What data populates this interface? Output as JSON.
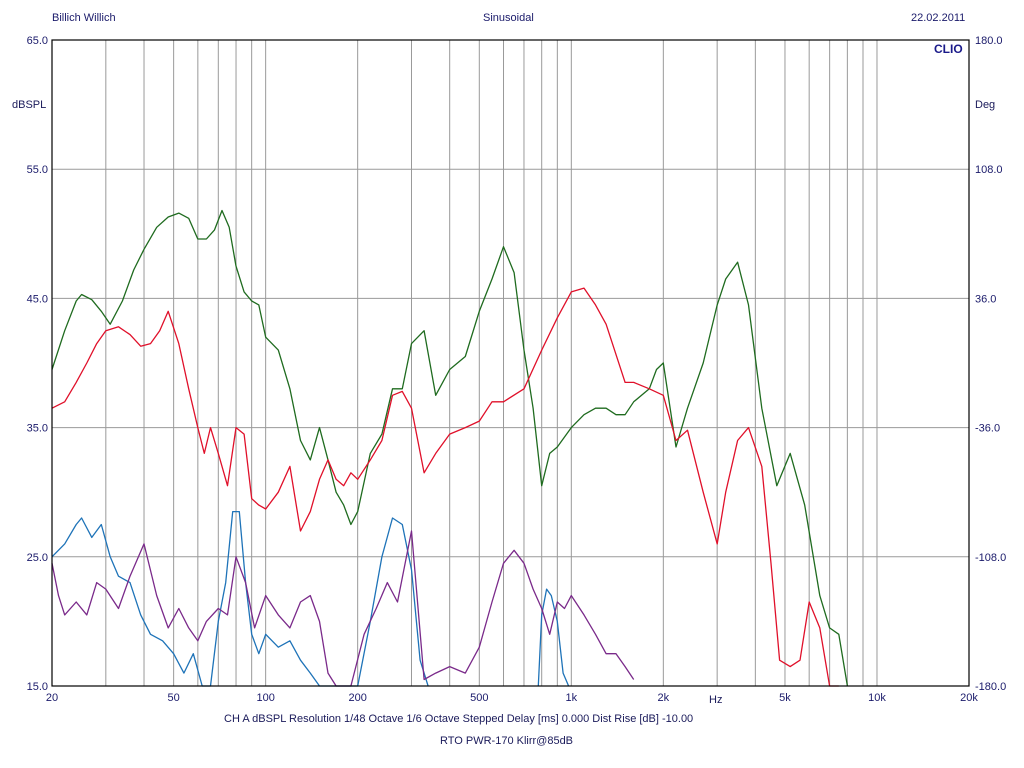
{
  "header": {
    "author": "Billich Willich",
    "mode": "Sinusoidal",
    "date": "22.02.2011",
    "brand": "CLIO"
  },
  "footer": {
    "line1": "CH A   dBSPL   Resolution 1/48 Octave   1/6 Octave   Stepped     Delay [ms] 0.000    Dist Rise [dB] -10.00",
    "line2": "RTO PWR-170 Klirr@85dB"
  },
  "colors": {
    "grid": "#9a9a9a",
    "frame": "#000000",
    "text": "#1a1a6a",
    "green": "#1f6b1f",
    "red": "#e0102a",
    "blue": "#1e73b8",
    "purple": "#7a2a8a"
  },
  "chart_data": {
    "type": "line",
    "title": "",
    "xlabel": "Hz",
    "ylabel": "dBSPL",
    "y2label": "Deg",
    "xscale": "log",
    "xlim": [
      20,
      20000
    ],
    "ylim": [
      15,
      65
    ],
    "y2lim": [
      -180,
      180
    ],
    "xticks": [
      {
        "v": 20,
        "label": "20"
      },
      {
        "v": 50,
        "label": "50"
      },
      {
        "v": 100,
        "label": "100"
      },
      {
        "v": 200,
        "label": "200"
      },
      {
        "v": 500,
        "label": "500"
      },
      {
        "v": 1000,
        "label": "1k"
      },
      {
        "v": 2000,
        "label": "2k"
      },
      {
        "v": 5000,
        "label": "5k"
      },
      {
        "v": 10000,
        "label": "10k"
      },
      {
        "v": 20000,
        "label": "20k"
      }
    ],
    "yticks": [
      {
        "v": 15,
        "label": "15.0"
      },
      {
        "v": 25,
        "label": "25.0"
      },
      {
        "v": 35,
        "label": "35.0"
      },
      {
        "v": 45,
        "label": "45.0"
      },
      {
        "v": 55,
        "label": "55.0"
      },
      {
        "v": 65,
        "label": "65.0"
      }
    ],
    "y2ticks": [
      {
        "v": -180,
        "label": "-180.0"
      },
      {
        "v": -108,
        "label": "-108.0"
      },
      {
        "v": -36,
        "label": "-36.0"
      },
      {
        "v": 36,
        "label": "36.0"
      },
      {
        "v": 108,
        "label": "108.0"
      },
      {
        "v": 180,
        "label": "180.0"
      }
    ],
    "grid": true,
    "series": [
      {
        "color": "#1f6b1f",
        "x": [
          20,
          22,
          24,
          25,
          27,
          29,
          31,
          34,
          37,
          40,
          44,
          48,
          52,
          56,
          60,
          64,
          68,
          72,
          76,
          80,
          85,
          90,
          95,
          100,
          110,
          120,
          130,
          140,
          150,
          160,
          170,
          180,
          190,
          200,
          220,
          240,
          260,
          280,
          300,
          330,
          360,
          400,
          450,
          500,
          550,
          600,
          650,
          700,
          750,
          800,
          850,
          900,
          1000,
          1100,
          1200,
          1300,
          1400,
          1500,
          1600,
          1800,
          1900,
          2000,
          2200,
          2400,
          2700,
          3000,
          3200,
          3500,
          3800,
          4200,
          4700,
          5200,
          5800,
          6500,
          7000,
          7500,
          8000
        ],
        "y": [
          39.5,
          42.5,
          44.8,
          45.3,
          44.9,
          44.0,
          43.0,
          44.8,
          47.2,
          48.8,
          50.5,
          51.3,
          51.6,
          51.2,
          49.6,
          49.6,
          50.3,
          51.8,
          50.5,
          47.5,
          45.5,
          44.8,
          44.5,
          42.0,
          41.0,
          38.0,
          34.0,
          32.5,
          35.0,
          32.5,
          30.0,
          29.0,
          27.5,
          28.5,
          33.0,
          34.5,
          38.0,
          38.0,
          41.5,
          42.5,
          37.5,
          39.5,
          40.5,
          44.0,
          46.5,
          49.0,
          47.0,
          41.0,
          36.5,
          30.5,
          33.0,
          33.5,
          35.0,
          36.0,
          36.5,
          36.5,
          36.0,
          36.0,
          37.0,
          38.0,
          39.5,
          40.0,
          33.5,
          36.5,
          40.0,
          44.5,
          46.5,
          47.8,
          44.5,
          36.5,
          30.5,
          33.0,
          29.0,
          22.0,
          19.5,
          19.0,
          15.0
        ]
      },
      {
        "color": "#e0102a",
        "x": [
          20,
          22,
          24,
          26,
          28,
          30,
          33,
          36,
          39,
          42,
          45,
          48,
          52,
          56,
          60,
          63,
          66,
          70,
          75,
          80,
          85,
          90,
          95,
          100,
          110,
          120,
          130,
          140,
          150,
          160,
          170,
          180,
          190,
          200,
          220,
          240,
          260,
          280,
          300,
          330,
          360,
          400,
          450,
          500,
          550,
          600,
          700,
          800,
          900,
          1000,
          1100,
          1200,
          1300,
          1500,
          1600,
          1800,
          2000,
          2200,
          2400,
          2700,
          3000,
          3200,
          3500,
          3800,
          4200,
          4500,
          4800,
          5200,
          5600,
          6000,
          6500,
          7000,
          7500
        ],
        "y": [
          36.5,
          37.0,
          38.5,
          40.0,
          41.5,
          42.5,
          42.8,
          42.2,
          41.3,
          41.5,
          42.5,
          44.0,
          41.5,
          38.0,
          35.0,
          33.0,
          35.0,
          33.0,
          30.5,
          35.0,
          34.5,
          29.5,
          29.0,
          28.7,
          30.0,
          32.0,
          27.0,
          28.5,
          31.0,
          32.5,
          31.0,
          30.5,
          31.5,
          31.0,
          32.5,
          34.0,
          37.5,
          37.8,
          36.5,
          31.5,
          33.0,
          34.5,
          35.0,
          35.5,
          37.0,
          37.0,
          38.0,
          41.0,
          43.5,
          45.5,
          45.8,
          44.5,
          43.0,
          38.5,
          38.5,
          38.0,
          37.5,
          34.0,
          34.8,
          30.0,
          26.0,
          30.0,
          34.0,
          35.0,
          32.0,
          24.5,
          17.0,
          16.5,
          17.0,
          21.5,
          19.5,
          15.0,
          15.0
        ]
      },
      {
        "color": "#1e73b8",
        "x": [
          20,
          22,
          24,
          25,
          27,
          29,
          31,
          33,
          36,
          39,
          42,
          46,
          50,
          54,
          58,
          62,
          66,
          70,
          74,
          78,
          82,
          86,
          90,
          95,
          100,
          110,
          120,
          130,
          140,
          150,
          160,
          180,
          200,
          220,
          240,
          260,
          280,
          300,
          320,
          340
        ],
        "y": [
          25.0,
          26.0,
          27.5,
          28.0,
          26.5,
          27.5,
          25.0,
          23.5,
          23.0,
          20.5,
          19.0,
          18.5,
          17.5,
          16.0,
          17.5,
          15.0,
          15.0,
          20.0,
          23.0,
          28.5,
          28.5,
          23.0,
          19.0,
          17.5,
          19.0,
          18.0,
          18.5,
          17.0,
          16.0,
          15.0,
          15.0,
          15.0,
          15.0,
          20.0,
          25.0,
          28.0,
          27.5,
          24.0,
          17.0,
          15.0
        ]
      },
      {
        "color": "#1e73b8",
        "x": [
          780,
          800,
          830,
          860,
          900,
          940,
          980
        ],
        "y": [
          15.0,
          20.5,
          22.5,
          22.0,
          20.0,
          16.0,
          15.0
        ]
      },
      {
        "color": "#7a2a8a",
        "x": [
          20,
          21,
          22,
          24,
          26,
          28,
          30,
          33,
          36,
          40,
          44,
          48,
          52,
          56,
          60,
          64,
          70,
          75,
          80,
          86,
          92,
          100,
          110,
          120,
          130,
          140,
          150,
          160,
          170,
          180,
          190,
          210,
          230,
          250,
          270,
          300,
          330,
          360,
          400,
          450,
          500,
          550,
          600,
          650,
          700,
          750,
          800,
          850,
          900,
          950,
          1000,
          1100,
          1200,
          1300,
          1400,
          1500,
          1600
        ],
        "y": [
          24.5,
          22.0,
          20.5,
          21.5,
          20.5,
          23.0,
          22.5,
          21.0,
          23.5,
          26.0,
          22.0,
          19.5,
          21.0,
          19.5,
          18.5,
          20.0,
          21.0,
          20.5,
          25.0,
          23.0,
          19.5,
          22.0,
          20.5,
          19.5,
          21.5,
          22.0,
          20.0,
          16.0,
          15.0,
          15.0,
          15.0,
          19.0,
          21.0,
          23.0,
          21.5,
          27.0,
          15.5,
          16.0,
          16.5,
          16.0,
          18.0,
          21.5,
          24.5,
          25.5,
          24.5,
          22.5,
          21.0,
          19.0,
          21.5,
          21.0,
          22.0,
          20.5,
          19.0,
          17.5,
          17.5,
          16.5,
          15.5
        ]
      }
    ]
  }
}
